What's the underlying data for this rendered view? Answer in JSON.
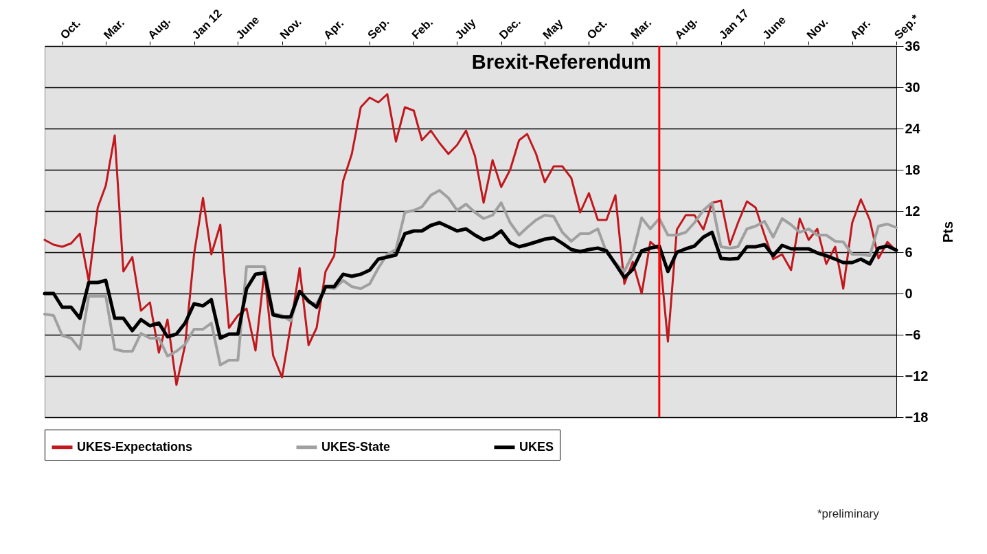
{
  "chart_data": {
    "type": "line",
    "ylabel": "Pts",
    "x": [
      "2010-08",
      "2010-09",
      "2010-10",
      "2010-11",
      "2010-12",
      "2011-01",
      "2011-02",
      "2011-03",
      "2011-04",
      "2011-05",
      "2011-06",
      "2011-07",
      "2011-08",
      "2011-09",
      "2011-10",
      "2011-11",
      "2011-12",
      "2012-01",
      "2012-02",
      "2012-03",
      "2012-04",
      "2012-05",
      "2012-06",
      "2012-07",
      "2012-08",
      "2012-09",
      "2012-10",
      "2012-11",
      "2012-12",
      "2013-01",
      "2013-02",
      "2013-03",
      "2013-04",
      "2013-05",
      "2013-06",
      "2013-07",
      "2013-08",
      "2013-09",
      "2013-10",
      "2013-11",
      "2013-12",
      "2014-01",
      "2014-02",
      "2014-03",
      "2014-04",
      "2014-05",
      "2014-06",
      "2014-07",
      "2014-08",
      "2014-09",
      "2014-10",
      "2014-11",
      "2014-12",
      "2015-01",
      "2015-02",
      "2015-03",
      "2015-04",
      "2015-05",
      "2015-06",
      "2015-07",
      "2015-08",
      "2015-09",
      "2015-10",
      "2015-11",
      "2015-12",
      "2016-01",
      "2016-02",
      "2016-03",
      "2016-04",
      "2016-05",
      "2016-06",
      "2016-07",
      "2016-08",
      "2016-09",
      "2016-10",
      "2016-11",
      "2016-12",
      "2017-01",
      "2017-02",
      "2017-03",
      "2017-04",
      "2017-05",
      "2017-06",
      "2017-07",
      "2017-08",
      "2017-09",
      "2017-10",
      "2017-11",
      "2017-12",
      "2018-01",
      "2018-02",
      "2018-03",
      "2018-04",
      "2018-05",
      "2018-06",
      "2018-07",
      "2018-08",
      "2018-09"
    ],
    "series": [
      {
        "name": "UKES-Expectations",
        "color": "#c0181e",
        "values": [
          7.8,
          7.1,
          6.8,
          7.3,
          8.7,
          1.8,
          12.5,
          15.7,
          23.0,
          3.2,
          5.3,
          -2.5,
          -1.3,
          -8.6,
          -3.8,
          -13.3,
          -7.5,
          5.7,
          13.9,
          5.7,
          10,
          -5,
          -3.2,
          -2.2,
          -8.3,
          3.2,
          -9,
          -12.2,
          -4.7,
          3.7,
          -7.5,
          -5,
          3.2,
          5.5,
          16.4,
          20.3,
          27.1,
          28.5,
          27.8,
          29.0,
          22.1,
          27.1,
          26.6,
          22.3,
          23.7,
          21.9,
          20.3,
          21.6,
          23.7,
          20.0,
          13.2,
          19.4,
          15.5,
          18.0,
          22.3,
          23.2,
          20.3,
          16.2,
          18.5,
          18.5,
          16.8,
          11.8,
          14.6,
          10.7,
          10.7,
          14.3,
          1.4,
          4.6,
          0,
          7.5,
          6.4,
          -7.0,
          9.3,
          11.4,
          11.4,
          9.3,
          13.2,
          13.5,
          7.1,
          10.3,
          13.4,
          12.5,
          8.5,
          5.0,
          5.7,
          3.4,
          10.9,
          7.8,
          9.4,
          4.3,
          6.8,
          0.7,
          10.3,
          13.7,
          10.7,
          5.1,
          7.5,
          6.2
        ]
      },
      {
        "name": "UKES-State",
        "color": "#a0a0a0",
        "values": [
          -3,
          -3.2,
          -6.1,
          -6.5,
          -8.1,
          -0.4,
          -0.4,
          -0.4,
          -8.1,
          -8.4,
          -8.4,
          -5.8,
          -6.5,
          -6.5,
          -9.1,
          -8.4,
          -7.4,
          -5.2,
          -5.2,
          -4.3,
          -10.4,
          -9.7,
          -9.7,
          3.9,
          3.9,
          3.9,
          -2.9,
          -3.2,
          -4,
          0.3,
          -1.3,
          -1.5,
          1,
          0.7,
          1.9,
          1,
          0.7,
          1.4,
          3.7,
          5.7,
          6.4,
          11.8,
          12.1,
          12.6,
          14.3,
          15,
          13.9,
          12.1,
          13,
          11.8,
          10.9,
          11.4,
          13.2,
          10.3,
          8.5,
          9.6,
          10.7,
          11.4,
          11.2,
          8.9,
          7.6,
          8.7,
          8.7,
          9.4,
          6.0,
          4.4,
          3.2,
          5.7,
          11,
          9.4,
          10.9,
          8.5,
          8.5,
          8.9,
          10.3,
          12.1,
          13.2,
          6.8,
          6.6,
          6.8,
          9.4,
          9.8,
          10.5,
          8.2,
          10.9,
          10,
          8.9,
          9.4,
          8.5,
          8.5,
          7.6,
          7.5,
          5.7,
          5.7,
          5.5,
          9.8,
          10.1,
          9.6
        ]
      },
      {
        "name": "UKES",
        "color": "#000000",
        "values": [
          0,
          0,
          -2,
          -2,
          -3.6,
          1.6,
          1.6,
          1.9,
          -3.6,
          -3.6,
          -5.4,
          -3.8,
          -4.7,
          -4.3,
          -6.3,
          -5.9,
          -4.3,
          -1.5,
          -1.8,
          -0.9,
          -6.5,
          -5.9,
          -5.9,
          0.7,
          2.8,
          3,
          -3.1,
          -3.4,
          -3.4,
          0.3,
          -1.1,
          -2,
          1,
          1.0,
          2.8,
          2.5,
          2.8,
          3.4,
          5.0,
          5.3,
          5.6,
          8.7,
          9.1,
          9.1,
          9.9,
          10.3,
          9.7,
          9.1,
          9.4,
          8.5,
          7.8,
          8.2,
          9.1,
          7.4,
          6.8,
          7.1,
          7.5,
          7.9,
          8.1,
          7.3,
          6.4,
          6.1,
          6.4,
          6.6,
          6.2,
          4.3,
          2.3,
          3.5,
          6.2,
          6.6,
          6.9,
          3.2,
          6.0,
          6.5,
          6.9,
          8.2,
          8.9,
          5.1,
          5.0,
          5.1,
          6.8,
          6.8,
          7.1,
          5.5,
          7.0,
          6.5,
          6.5,
          6.5,
          5.9,
          5.5,
          5.0,
          4.5,
          4.5,
          5.0,
          4.3,
          6.6,
          6.9,
          6.3
        ]
      }
    ],
    "xlim": [
      "2010-08",
      "2018-09"
    ],
    "xticks": [
      {
        "value": "2010-10",
        "label": "Oct."
      },
      {
        "value": "2011-03",
        "label": "Mar."
      },
      {
        "value": "2011-08",
        "label": "Aug."
      },
      {
        "value": "2012-01",
        "label": "Jan 12"
      },
      {
        "value": "2012-06",
        "label": "June"
      },
      {
        "value": "2012-11",
        "label": "Nov."
      },
      {
        "value": "2013-04",
        "label": "Apr."
      },
      {
        "value": "2013-09",
        "label": "Sep."
      },
      {
        "value": "2014-02",
        "label": "Feb."
      },
      {
        "value": "2014-07",
        "label": "July"
      },
      {
        "value": "2014-12",
        "label": "Dec."
      },
      {
        "value": "2015-05",
        "label": "May"
      },
      {
        "value": "2015-10",
        "label": "Oct."
      },
      {
        "value": "2016-03",
        "label": "Mar."
      },
      {
        "value": "2016-08",
        "label": "Aug."
      },
      {
        "value": "2017-01",
        "label": "Jan 17"
      },
      {
        "value": "2017-06",
        "label": "June"
      },
      {
        "value": "2017-11",
        "label": "Nov."
      },
      {
        "value": "2018-04",
        "label": "Apr."
      },
      {
        "value": "2018-09",
        "label": "Sep.*"
      }
    ],
    "ylim": [
      -18,
      36
    ],
    "yticks": [
      -18,
      -12,
      -6,
      0,
      6,
      12,
      18,
      24,
      30,
      36
    ],
    "ref_lines": [
      {
        "axis": "x",
        "value": "2016-06",
        "label": "Brexit-Referendum",
        "color": "#ff0000"
      }
    ],
    "annotations": [
      "*preliminary"
    ],
    "grid": "y",
    "legend": "bottom"
  }
}
